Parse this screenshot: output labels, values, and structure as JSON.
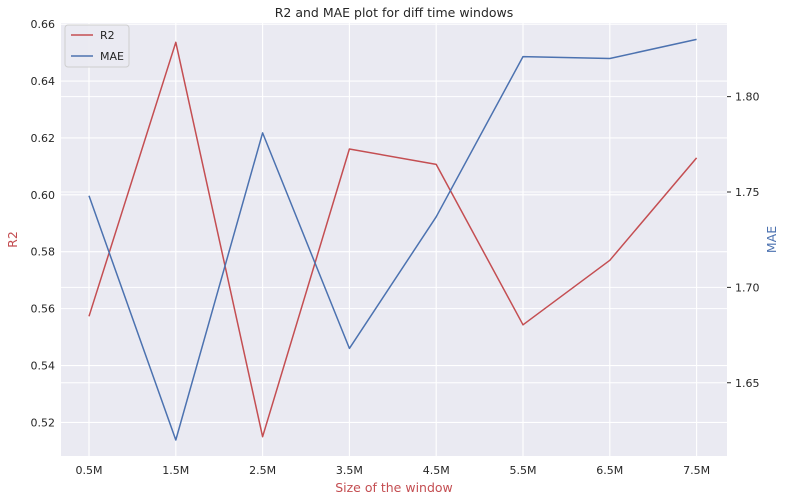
{
  "chart_data": {
    "type": "line",
    "title": "R2 and MAE plot for diff time windows",
    "xlabel": "Size of the window",
    "categories": [
      "0.5M",
      "1.5M",
      "2.5M",
      "3.5M",
      "4.5M",
      "5.5M",
      "6.5M",
      "7.5M"
    ],
    "series": [
      {
        "name": "R2",
        "axis": "left",
        "color": "#c44e52",
        "values": [
          0.5573,
          0.6536,
          0.515,
          0.6161,
          0.6107,
          0.5543,
          0.577,
          0.613
        ]
      },
      {
        "name": "MAE",
        "axis": "right",
        "color": "#4c72b0",
        "values": [
          1.748,
          1.62,
          1.781,
          1.668,
          1.737,
          1.821,
          1.82,
          1.83
        ]
      }
    ],
    "y_left": {
      "label": "R2",
      "color": "#c44e52",
      "ylim": [
        0.5082,
        0.6604
      ],
      "ticks": [
        "0.52",
        "0.54",
        "0.56",
        "0.58",
        "0.60",
        "0.62",
        "0.64",
        "0.66"
      ]
    },
    "y_right": {
      "label": "MAE",
      "color": "#4c72b0",
      "ylim": [
        1.6116,
        1.8386
      ],
      "ticks": [
        "1.65",
        "1.70",
        "1.75",
        "1.80"
      ]
    },
    "grid": true,
    "legend": "top-left",
    "background": "#eaeaf2",
    "grid_color": "#ffffff"
  }
}
